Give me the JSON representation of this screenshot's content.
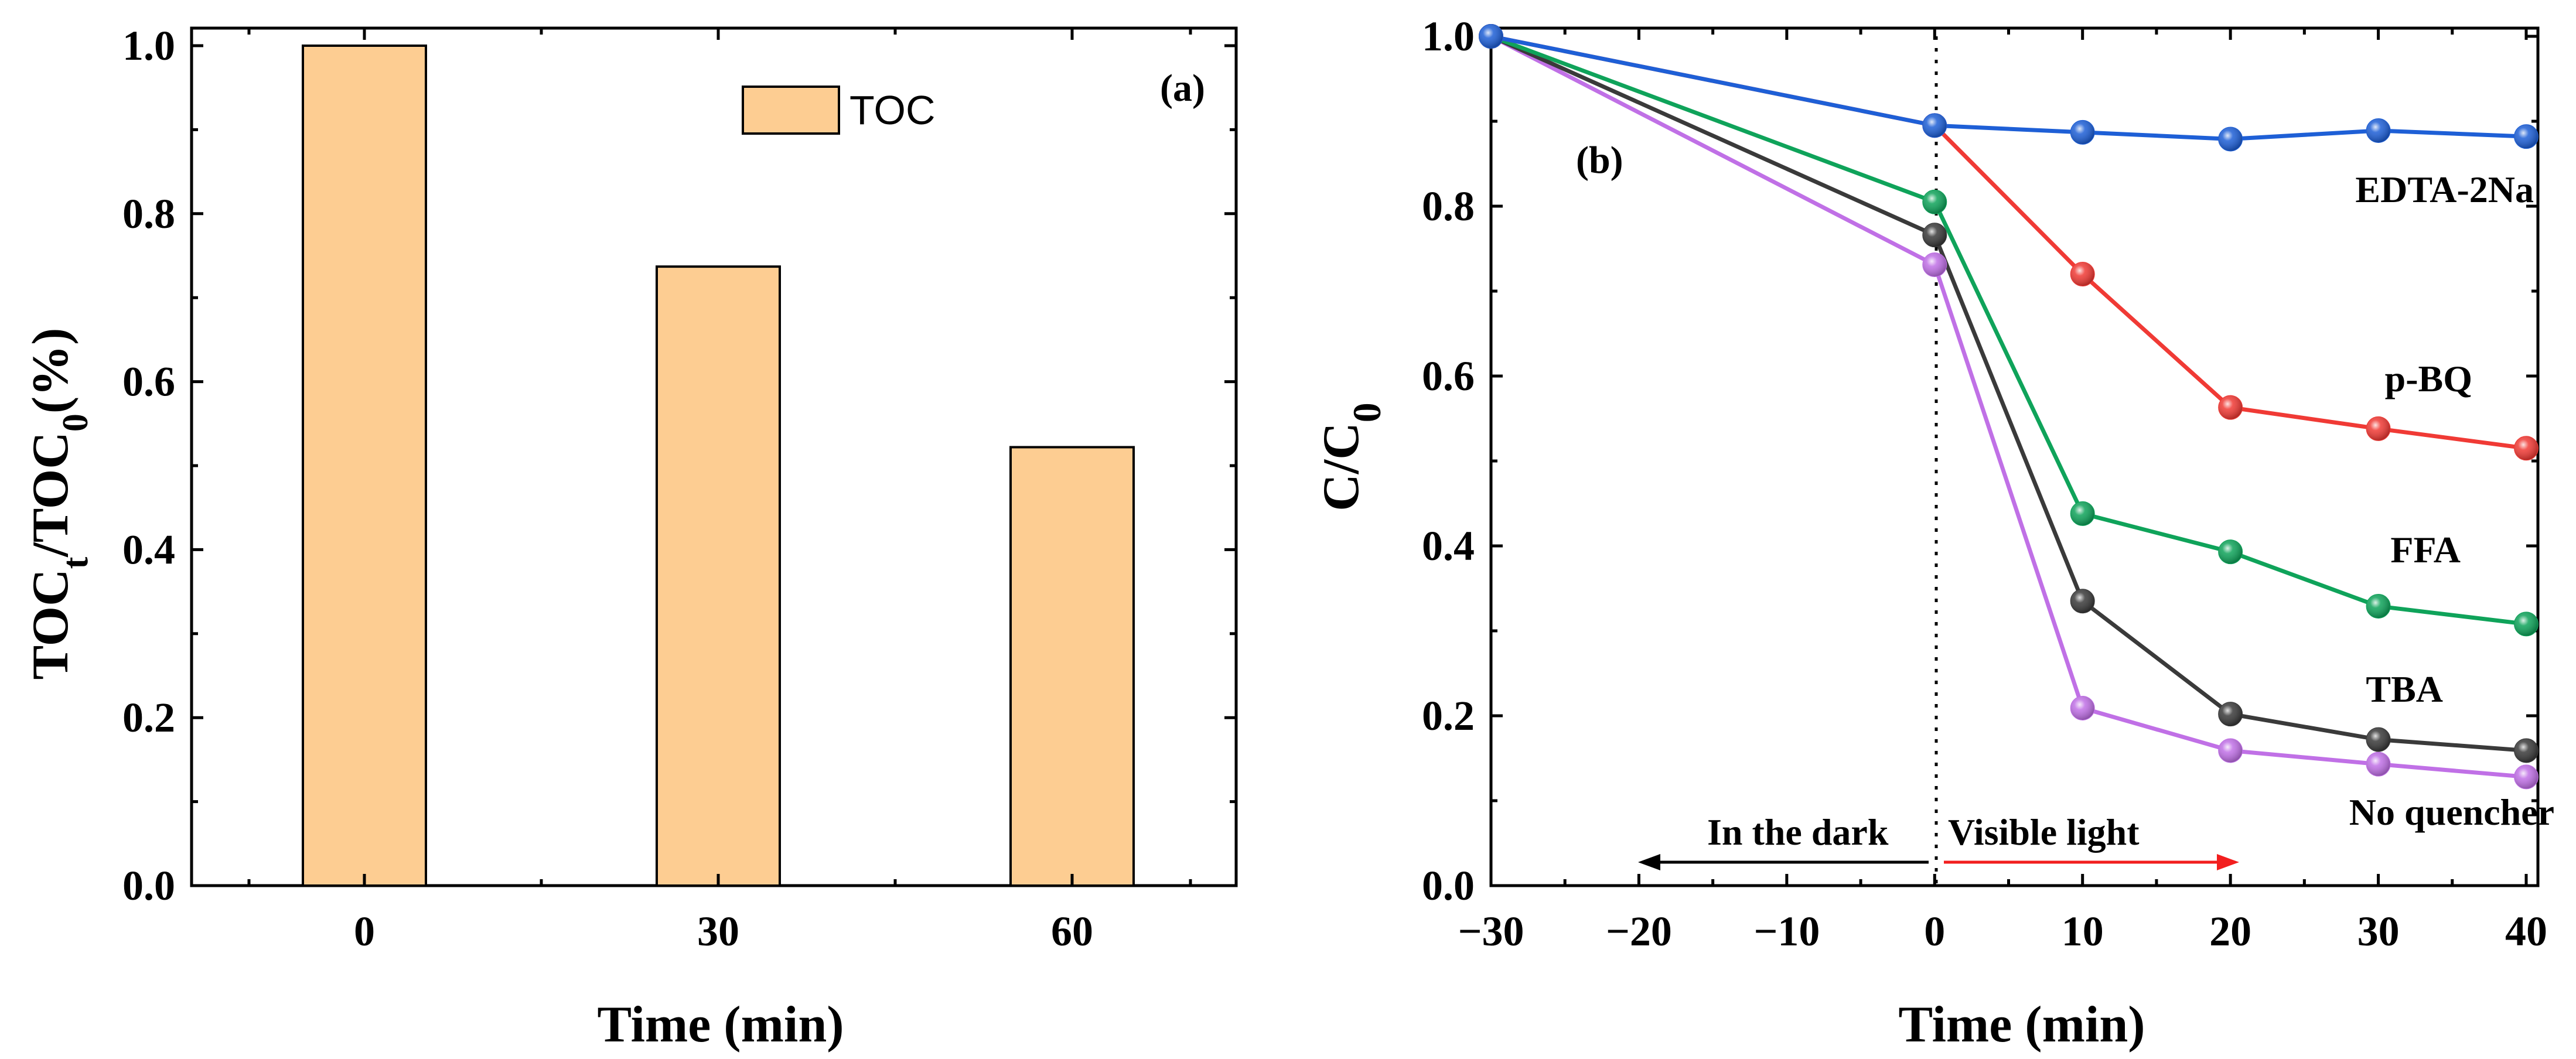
{
  "chart_data": [
    {
      "panel": "(a)",
      "type": "bar",
      "categories": [
        "0",
        "30",
        "60"
      ],
      "values": [
        1.0,
        0.737,
        0.522
      ],
      "ylim": [
        0,
        1.0
      ],
      "yticks": [
        "0.0",
        "0.2",
        "0.4",
        "0.6",
        "0.8",
        "1.0"
      ],
      "xlabel": "Time (min)",
      "ylabel": {
        "main": "TOC",
        "sub1": "t",
        "mid": "/TOC",
        "sub2": "0",
        "tail": "(%)"
      },
      "legend": "TOC",
      "bar_color": "#FDCD92"
    },
    {
      "panel": "(b)",
      "type": "line",
      "x": [
        -30,
        0,
        10,
        20,
        30,
        40
      ],
      "xlim": [
        -30,
        40
      ],
      "ylim": [
        0,
        1.0
      ],
      "xticks": [
        "−30",
        "−20",
        "−10",
        "0",
        "10",
        "20",
        "30",
        "40"
      ],
      "yticks": [
        "0.0",
        "0.2",
        "0.4",
        "0.6",
        "0.8",
        "1.0"
      ],
      "xlabel": "Time (min)",
      "ylabel": {
        "main": "C/C",
        "sub": "0"
      },
      "series": [
        {
          "name": "EDTA-2Na",
          "color": "#1E5FD6",
          "values": [
            1.0,
            0.895,
            0.887,
            0.879,
            0.889,
            0.882
          ]
        },
        {
          "name": "p-BQ",
          "color": "#F03A35",
          "values": [
            1.0,
            0.895,
            0.72,
            0.563,
            0.538,
            0.515
          ]
        },
        {
          "name": "FFA",
          "color": "#0FA35A",
          "values": [
            1.0,
            0.805,
            0.438,
            0.393,
            0.329,
            0.308
          ]
        },
        {
          "name": "TBA",
          "color": "#3A3A3A",
          "values": [
            1.0,
            0.766,
            0.335,
            0.202,
            0.172,
            0.159
          ]
        },
        {
          "name": "No quencher",
          "color": "#C070E6",
          "values": [
            1.0,
            0.731,
            0.209,
            0.159,
            0.143,
            0.128
          ]
        }
      ],
      "annotations": {
        "dark": "In the dark",
        "light": "Visible light"
      }
    }
  ]
}
